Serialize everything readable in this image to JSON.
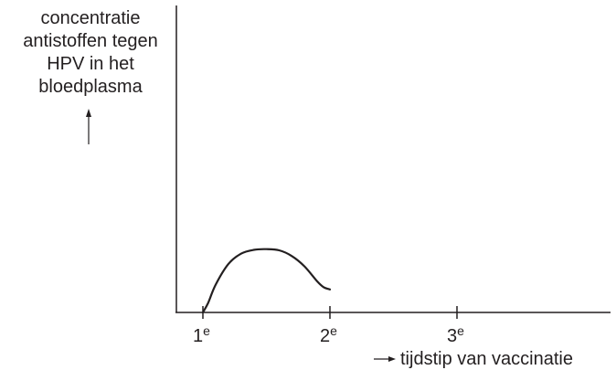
{
  "chart_data": {
    "type": "line",
    "title": "",
    "ylabel_lines": [
      "concentratie",
      "antistoffen tegen",
      "HPV in het",
      "bloedplasma"
    ],
    "xlabel": "tijdstip van vaccinatie",
    "ticks": [
      {
        "base": "1",
        "sup": "e",
        "x": 1
      },
      {
        "base": "2",
        "sup": "e",
        "x": 2
      },
      {
        "base": "3",
        "sup": "e",
        "x": 3
      }
    ],
    "xlim": [
      1,
      4
    ],
    "ylim": [
      0,
      1
    ],
    "grid": false,
    "series": [
      {
        "x": [
          1,
          1.04,
          1.1,
          1.2,
          1.3,
          1.4,
          1.5,
          1.6,
          1.7,
          1.8,
          1.9,
          1.95,
          2
        ],
        "y": [
          0,
          0.04,
          0.12,
          0.21,
          0.255,
          0.272,
          0.275,
          0.27,
          0.245,
          0.2,
          0.135,
          0.11,
          0.1
        ]
      }
    ],
    "colors": {
      "ink": "#231f20"
    }
  }
}
